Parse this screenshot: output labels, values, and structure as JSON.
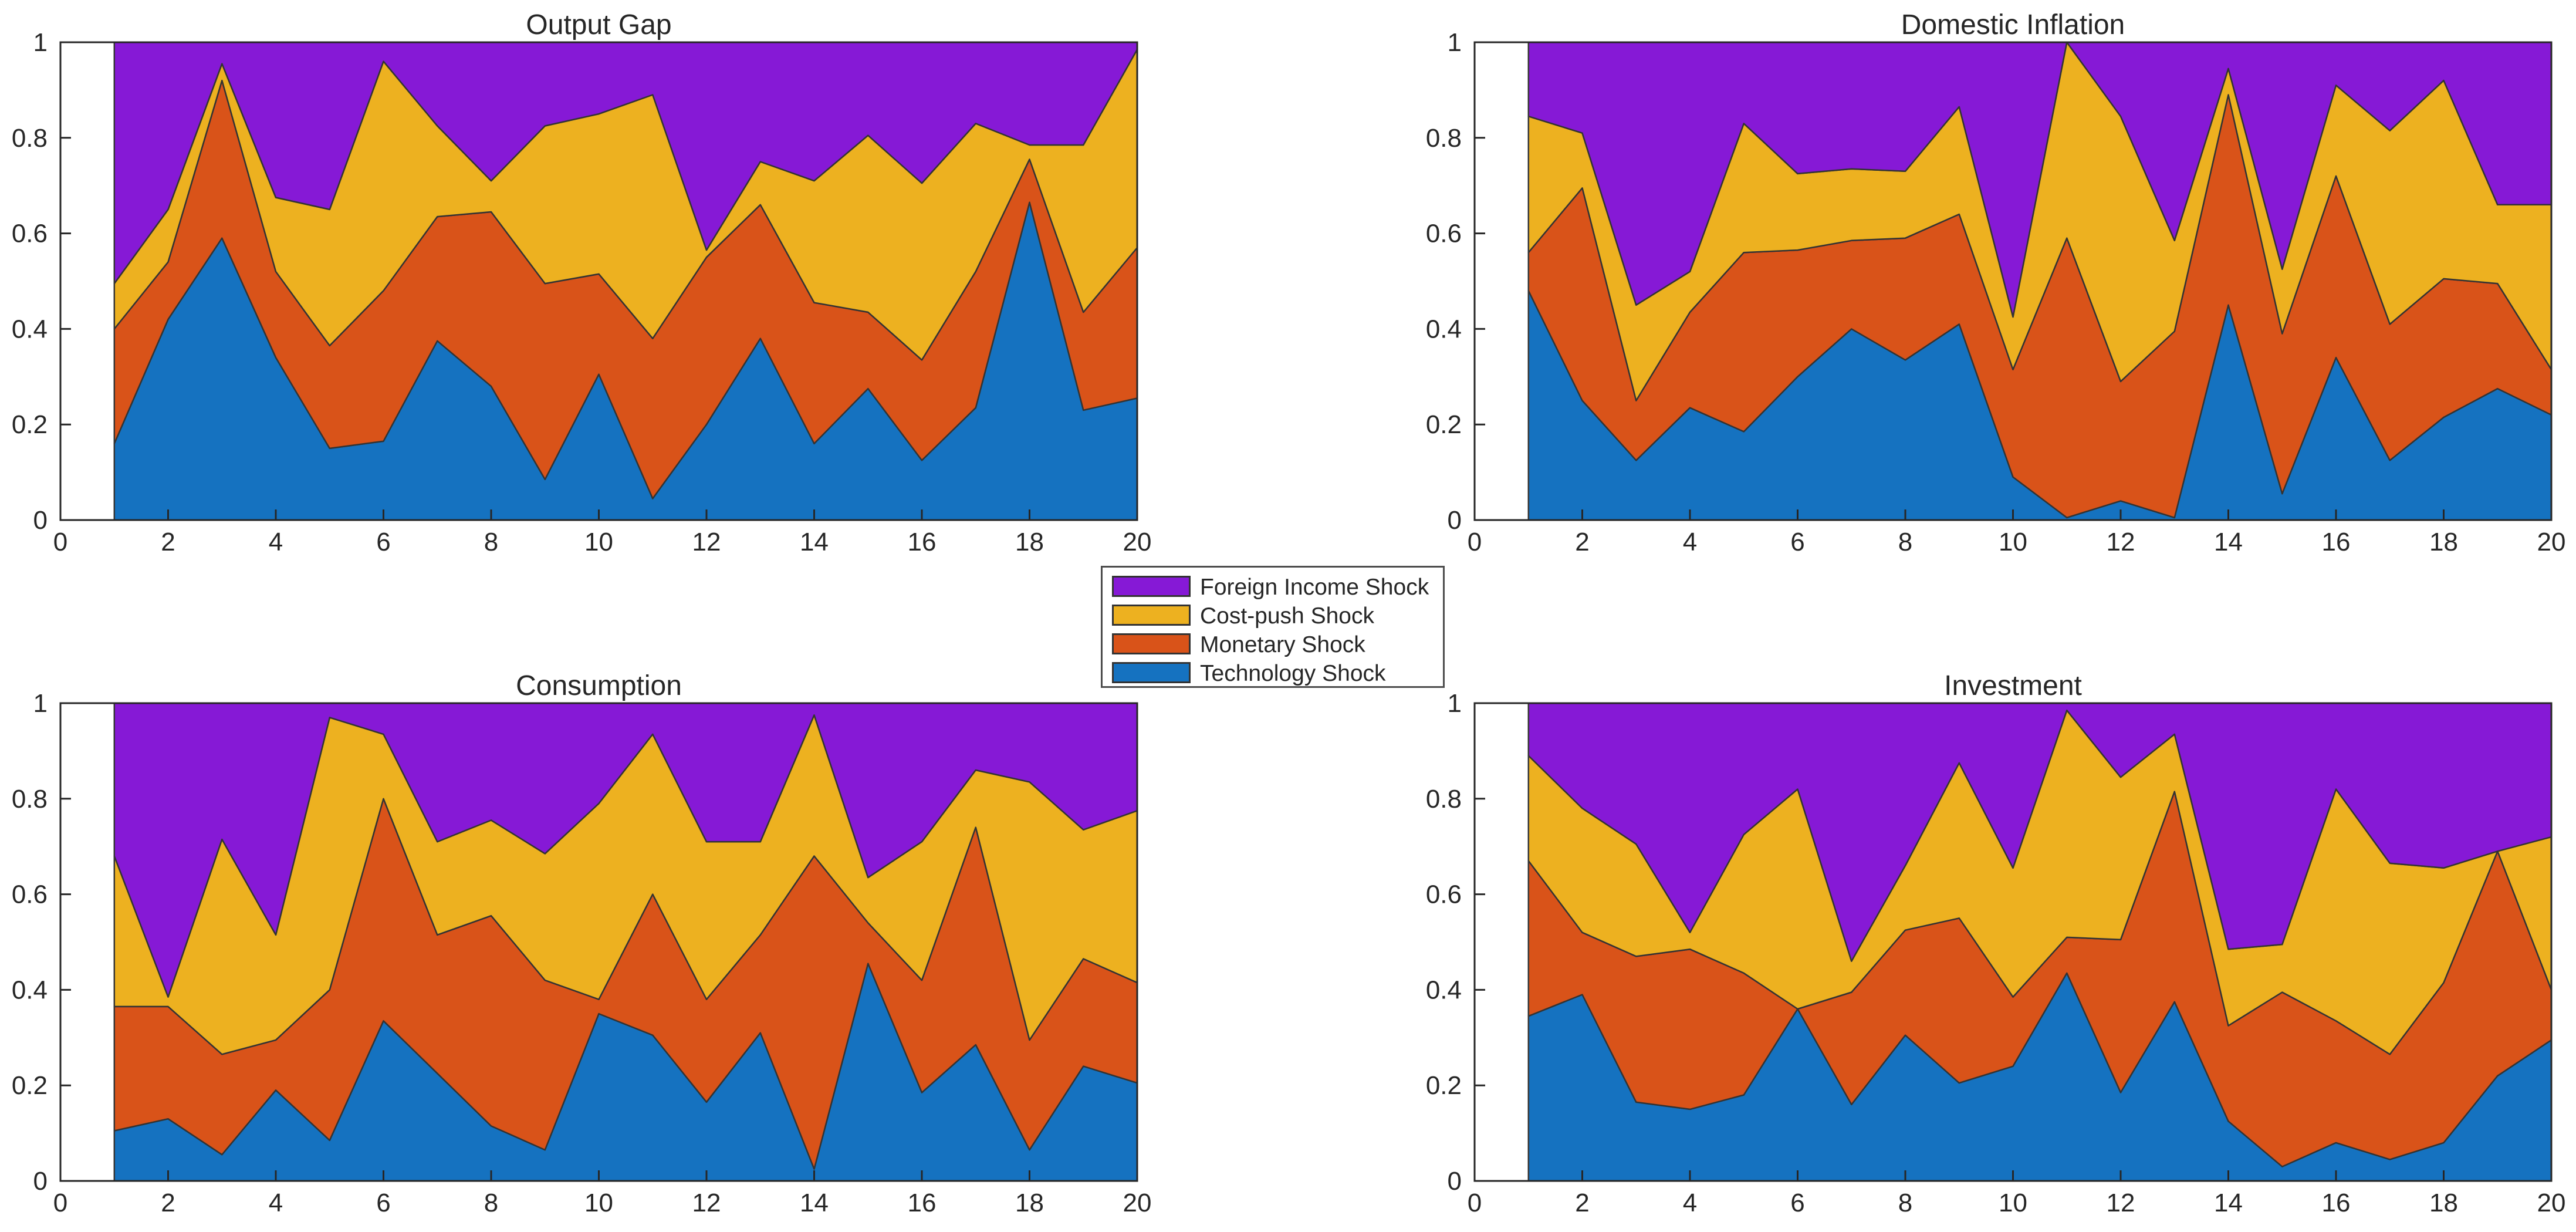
{
  "colors": {
    "Foreign Income Shock": "#8619d6",
    "Cost-push Shock": "#edb120",
    "Monetary Shock": "#d95319",
    "Technology Shock": "#1572c0",
    "axis": "#262626",
    "outline": "#333333"
  },
  "legend": {
    "items": [
      {
        "label": "Foreign Income Shock"
      },
      {
        "label": "Cost-push Shock"
      },
      {
        "label": "Monetary Shock"
      },
      {
        "label": "Technology Shock"
      }
    ]
  },
  "chart_data": [
    {
      "type": "area",
      "stacked": true,
      "title": "Output Gap",
      "xlabel": "",
      "ylabel": "",
      "xlim": [
        0,
        20
      ],
      "ylim": [
        0,
        1
      ],
      "xticks": [
        0,
        2,
        4,
        6,
        8,
        10,
        12,
        14,
        16,
        18,
        20
      ],
      "yticks": [
        0,
        0.2,
        0.4,
        0.6,
        0.8,
        1
      ],
      "x": [
        1,
        2,
        3,
        4,
        5,
        6,
        7,
        8,
        9,
        10,
        11,
        12,
        13,
        14,
        15,
        16,
        17,
        18,
        19,
        20
      ],
      "series": [
        {
          "name": "Technology Shock",
          "values": [
            0.16,
            0.42,
            0.59,
            0.34,
            0.15,
            0.165,
            0.375,
            0.28,
            0.085,
            0.305,
            0.045,
            0.2,
            0.38,
            0.16,
            0.275,
            0.125,
            0.235,
            0.665,
            0.23,
            0.255
          ]
        },
        {
          "name": "Monetary Shock",
          "values": [
            0.24,
            0.12,
            0.33,
            0.18,
            0.215,
            0.315,
            0.26,
            0.365,
            0.41,
            0.21,
            0.335,
            0.35,
            0.28,
            0.295,
            0.16,
            0.21,
            0.285,
            0.09,
            0.205,
            0.315
          ]
        },
        {
          "name": "Cost-push Shock",
          "values": [
            0.095,
            0.11,
            0.035,
            0.155,
            0.285,
            0.48,
            0.19,
            0.065,
            0.33,
            0.335,
            0.51,
            0.015,
            0.09,
            0.255,
            0.37,
            0.37,
            0.31,
            0.03,
            0.35,
            0.415
          ]
        },
        {
          "name": "Foreign Income Shock",
          "values": [
            0.505,
            0.35,
            0.045,
            0.325,
            0.35,
            0.04,
            0.175,
            0.29,
            0.175,
            0.15,
            0.11,
            0.435,
            0.25,
            0.29,
            0.195,
            0.295,
            0.17,
            0.215,
            0.215,
            0.015
          ]
        }
      ]
    },
    {
      "type": "area",
      "stacked": true,
      "title": "Domestic Inflation",
      "xlabel": "",
      "ylabel": "",
      "xlim": [
        0,
        20
      ],
      "ylim": [
        0,
        1
      ],
      "xticks": [
        0,
        2,
        4,
        6,
        8,
        10,
        12,
        14,
        16,
        18,
        20
      ],
      "yticks": [
        0,
        0.2,
        0.4,
        0.6,
        0.8,
        1
      ],
      "x": [
        1,
        2,
        3,
        4,
        5,
        6,
        7,
        8,
        9,
        10,
        11,
        12,
        13,
        14,
        15,
        16,
        17,
        18,
        19,
        20
      ],
      "series": [
        {
          "name": "Technology Shock",
          "values": [
            0.48,
            0.25,
            0.125,
            0.235,
            0.185,
            0.3,
            0.4,
            0.335,
            0.41,
            0.09,
            0.005,
            0.04,
            0.005,
            0.45,
            0.055,
            0.34,
            0.125,
            0.215,
            0.275,
            0.22
          ]
        },
        {
          "name": "Monetary Shock",
          "values": [
            0.08,
            0.445,
            0.125,
            0.2,
            0.375,
            0.265,
            0.185,
            0.255,
            0.23,
            0.225,
            0.585,
            0.25,
            0.39,
            0.44,
            0.335,
            0.38,
            0.285,
            0.29,
            0.22,
            0.095
          ]
        },
        {
          "name": "Cost-push Shock",
          "values": [
            0.285,
            0.115,
            0.2,
            0.085,
            0.27,
            0.16,
            0.15,
            0.14,
            0.225,
            0.11,
            0.41,
            0.555,
            0.19,
            0.055,
            0.135,
            0.19,
            0.405,
            0.415,
            0.165,
            0.345
          ]
        },
        {
          "name": "Foreign Income Shock",
          "values": [
            0.155,
            0.19,
            0.55,
            0.48,
            0.17,
            0.275,
            0.265,
            0.27,
            0.135,
            0.575,
            0.0,
            0.155,
            0.415,
            0.055,
            0.475,
            0.09,
            0.185,
            0.08,
            0.34,
            0.34
          ]
        }
      ]
    },
    {
      "type": "area",
      "stacked": true,
      "title": "Consumption",
      "xlabel": "",
      "ylabel": "",
      "xlim": [
        0,
        20
      ],
      "ylim": [
        0,
        1
      ],
      "xticks": [
        0,
        2,
        4,
        6,
        8,
        10,
        12,
        14,
        16,
        18,
        20
      ],
      "yticks": [
        0,
        0.2,
        0.4,
        0.6,
        0.8,
        1
      ],
      "x": [
        1,
        2,
        3,
        4,
        5,
        6,
        7,
        8,
        9,
        10,
        11,
        12,
        13,
        14,
        15,
        16,
        17,
        18,
        19,
        20
      ],
      "series": [
        {
          "name": "Technology Shock",
          "values": [
            0.105,
            0.13,
            0.055,
            0.19,
            0.085,
            0.335,
            0.225,
            0.115,
            0.065,
            0.35,
            0.305,
            0.165,
            0.31,
            0.025,
            0.455,
            0.185,
            0.285,
            0.065,
            0.24,
            0.205
          ]
        },
        {
          "name": "Monetary Shock",
          "values": [
            0.26,
            0.235,
            0.21,
            0.105,
            0.315,
            0.465,
            0.29,
            0.44,
            0.355,
            0.03,
            0.295,
            0.215,
            0.205,
            0.655,
            0.085,
            0.235,
            0.455,
            0.23,
            0.225,
            0.21
          ]
        },
        {
          "name": "Cost-push Shock",
          "values": [
            0.315,
            0.02,
            0.45,
            0.22,
            0.57,
            0.135,
            0.195,
            0.2,
            0.265,
            0.41,
            0.335,
            0.33,
            0.195,
            0.295,
            0.095,
            0.29,
            0.12,
            0.54,
            0.27,
            0.36
          ]
        },
        {
          "name": "Foreign Income Shock",
          "values": [
            0.32,
            0.615,
            0.285,
            0.485,
            0.03,
            0.065,
            0.29,
            0.245,
            0.315,
            0.21,
            0.065,
            0.29,
            0.29,
            0.025,
            0.365,
            0.29,
            0.14,
            0.165,
            0.265,
            0.225
          ]
        }
      ]
    },
    {
      "type": "area",
      "stacked": true,
      "title": "Investment",
      "xlabel": "",
      "ylabel": "",
      "xlim": [
        0,
        20
      ],
      "ylim": [
        0,
        1
      ],
      "xticks": [
        0,
        2,
        4,
        6,
        8,
        10,
        12,
        14,
        16,
        18,
        20
      ],
      "yticks": [
        0,
        0.2,
        0.4,
        0.6,
        0.8,
        1
      ],
      "x": [
        1,
        2,
        3,
        4,
        5,
        6,
        7,
        8,
        9,
        10,
        11,
        12,
        13,
        14,
        15,
        16,
        17,
        18,
        19,
        20
      ],
      "series": [
        {
          "name": "Technology Shock",
          "values": [
            0.345,
            0.39,
            0.165,
            0.15,
            0.18,
            0.36,
            0.16,
            0.305,
            0.205,
            0.24,
            0.435,
            0.185,
            0.375,
            0.125,
            0.03,
            0.08,
            0.045,
            0.08,
            0.22,
            0.295
          ]
        },
        {
          "name": "Monetary Shock",
          "values": [
            0.325,
            0.13,
            0.305,
            0.335,
            0.255,
            0.0,
            0.235,
            0.22,
            0.345,
            0.145,
            0.075,
            0.32,
            0.44,
            0.2,
            0.365,
            0.255,
            0.22,
            0.335,
            0.47,
            0.105
          ]
        },
        {
          "name": "Cost-push Shock",
          "values": [
            0.22,
            0.26,
            0.235,
            0.035,
            0.29,
            0.46,
            0.065,
            0.135,
            0.325,
            0.27,
            0.475,
            0.34,
            0.12,
            0.16,
            0.1,
            0.485,
            0.4,
            0.24,
            0.0,
            0.32
          ]
        },
        {
          "name": "Foreign Income Shock",
          "values": [
            0.11,
            0.22,
            0.295,
            0.48,
            0.275,
            0.18,
            0.54,
            0.34,
            0.125,
            0.345,
            0.015,
            0.155,
            0.065,
            0.515,
            0.505,
            0.18,
            0.335,
            0.345,
            0.31,
            0.28
          ]
        }
      ]
    }
  ]
}
